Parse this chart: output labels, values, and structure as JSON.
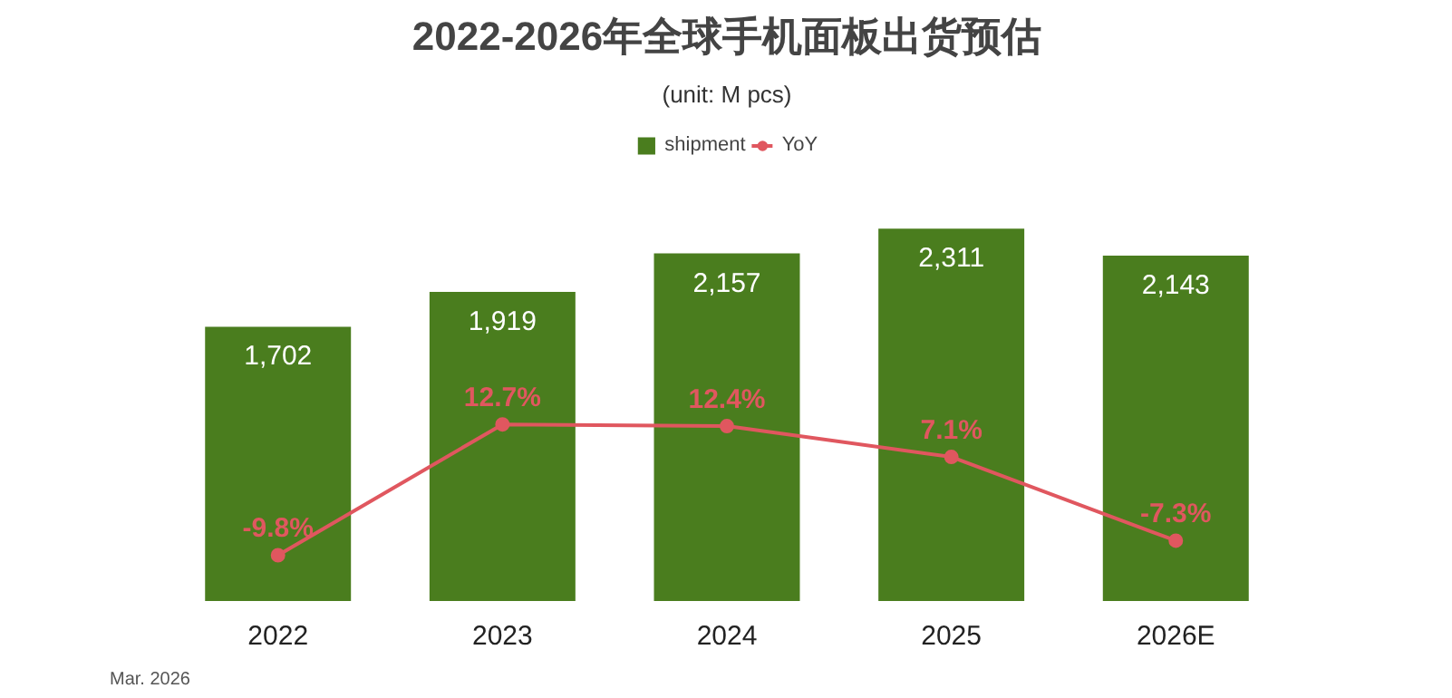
{
  "chart_data": {
    "type": "bar",
    "title": "2022-2026年全球手机面板出货预估",
    "subtitle": "(unit: M pcs)",
    "categories": [
      "2022",
      "2023",
      "2024",
      "2025",
      "2026E"
    ],
    "series": [
      {
        "name": "shipment",
        "color": "#4a7d1e",
        "values": [
          1702,
          1919,
          2157,
          2311,
          2143
        ],
        "value_labels": [
          "1,702",
          "1,919",
          "2,157",
          "2,311",
          "2,143"
        ]
      },
      {
        "name": "YoY",
        "type": "line",
        "axis": "y2",
        "color": "#e0575f",
        "values": [
          -9.8,
          12.7,
          12.4,
          7.1,
          -7.3
        ],
        "value_labels": [
          "-9.8%",
          "12.7%",
          "12.4%",
          "7.1%",
          "-7.3%"
        ]
      }
    ],
    "legend": "top",
    "marker": "circle",
    "annotations": [
      "Mar. 2026"
    ]
  }
}
